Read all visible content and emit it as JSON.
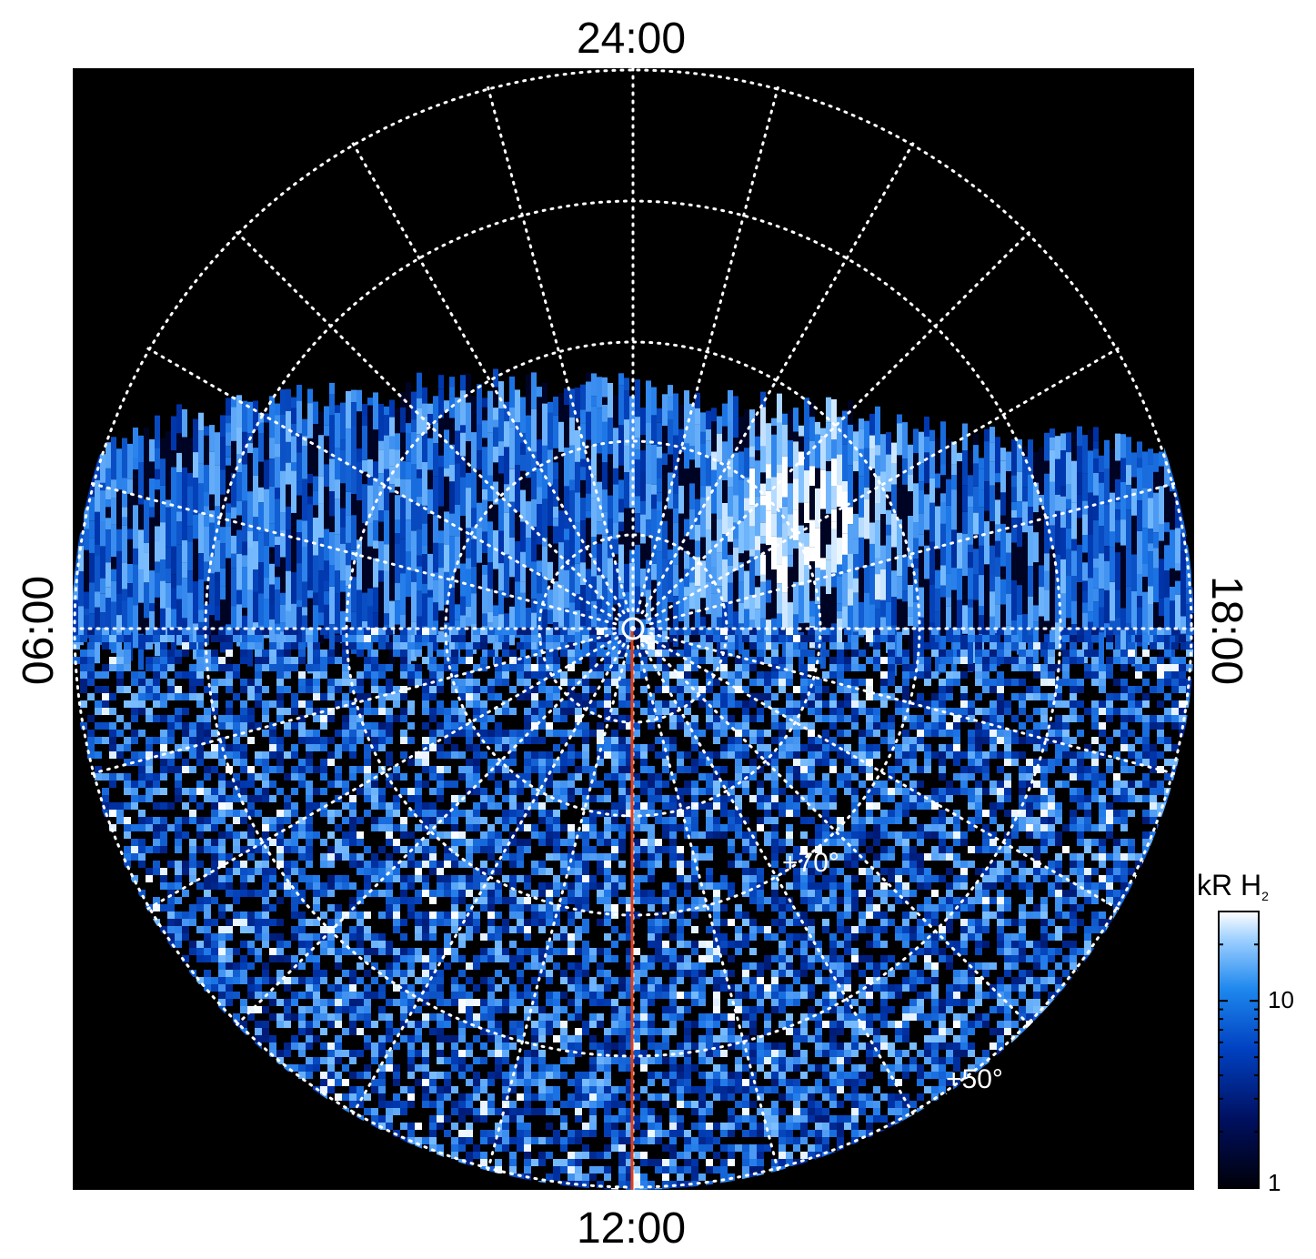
{
  "local_time_labels": {
    "top": "24:00",
    "bottom": "12:00",
    "left": "06:00",
    "right": "18:00"
  },
  "latitude_labels": [
    "+70°",
    "+50°"
  ],
  "colorbar": {
    "unit": "kR H",
    "unit_subscript": "2",
    "tick_labels": [
      "10",
      "1"
    ],
    "scale": "log",
    "range": [
      1,
      30
    ]
  },
  "colors": {
    "background": "#000000",
    "grid": "#ffffff",
    "meridian_line": "#e0401a",
    "colormap": [
      "#000010",
      "#001060",
      "#0038b0",
      "#1e78e8",
      "#7ec0ff",
      "#ffffff"
    ]
  }
}
